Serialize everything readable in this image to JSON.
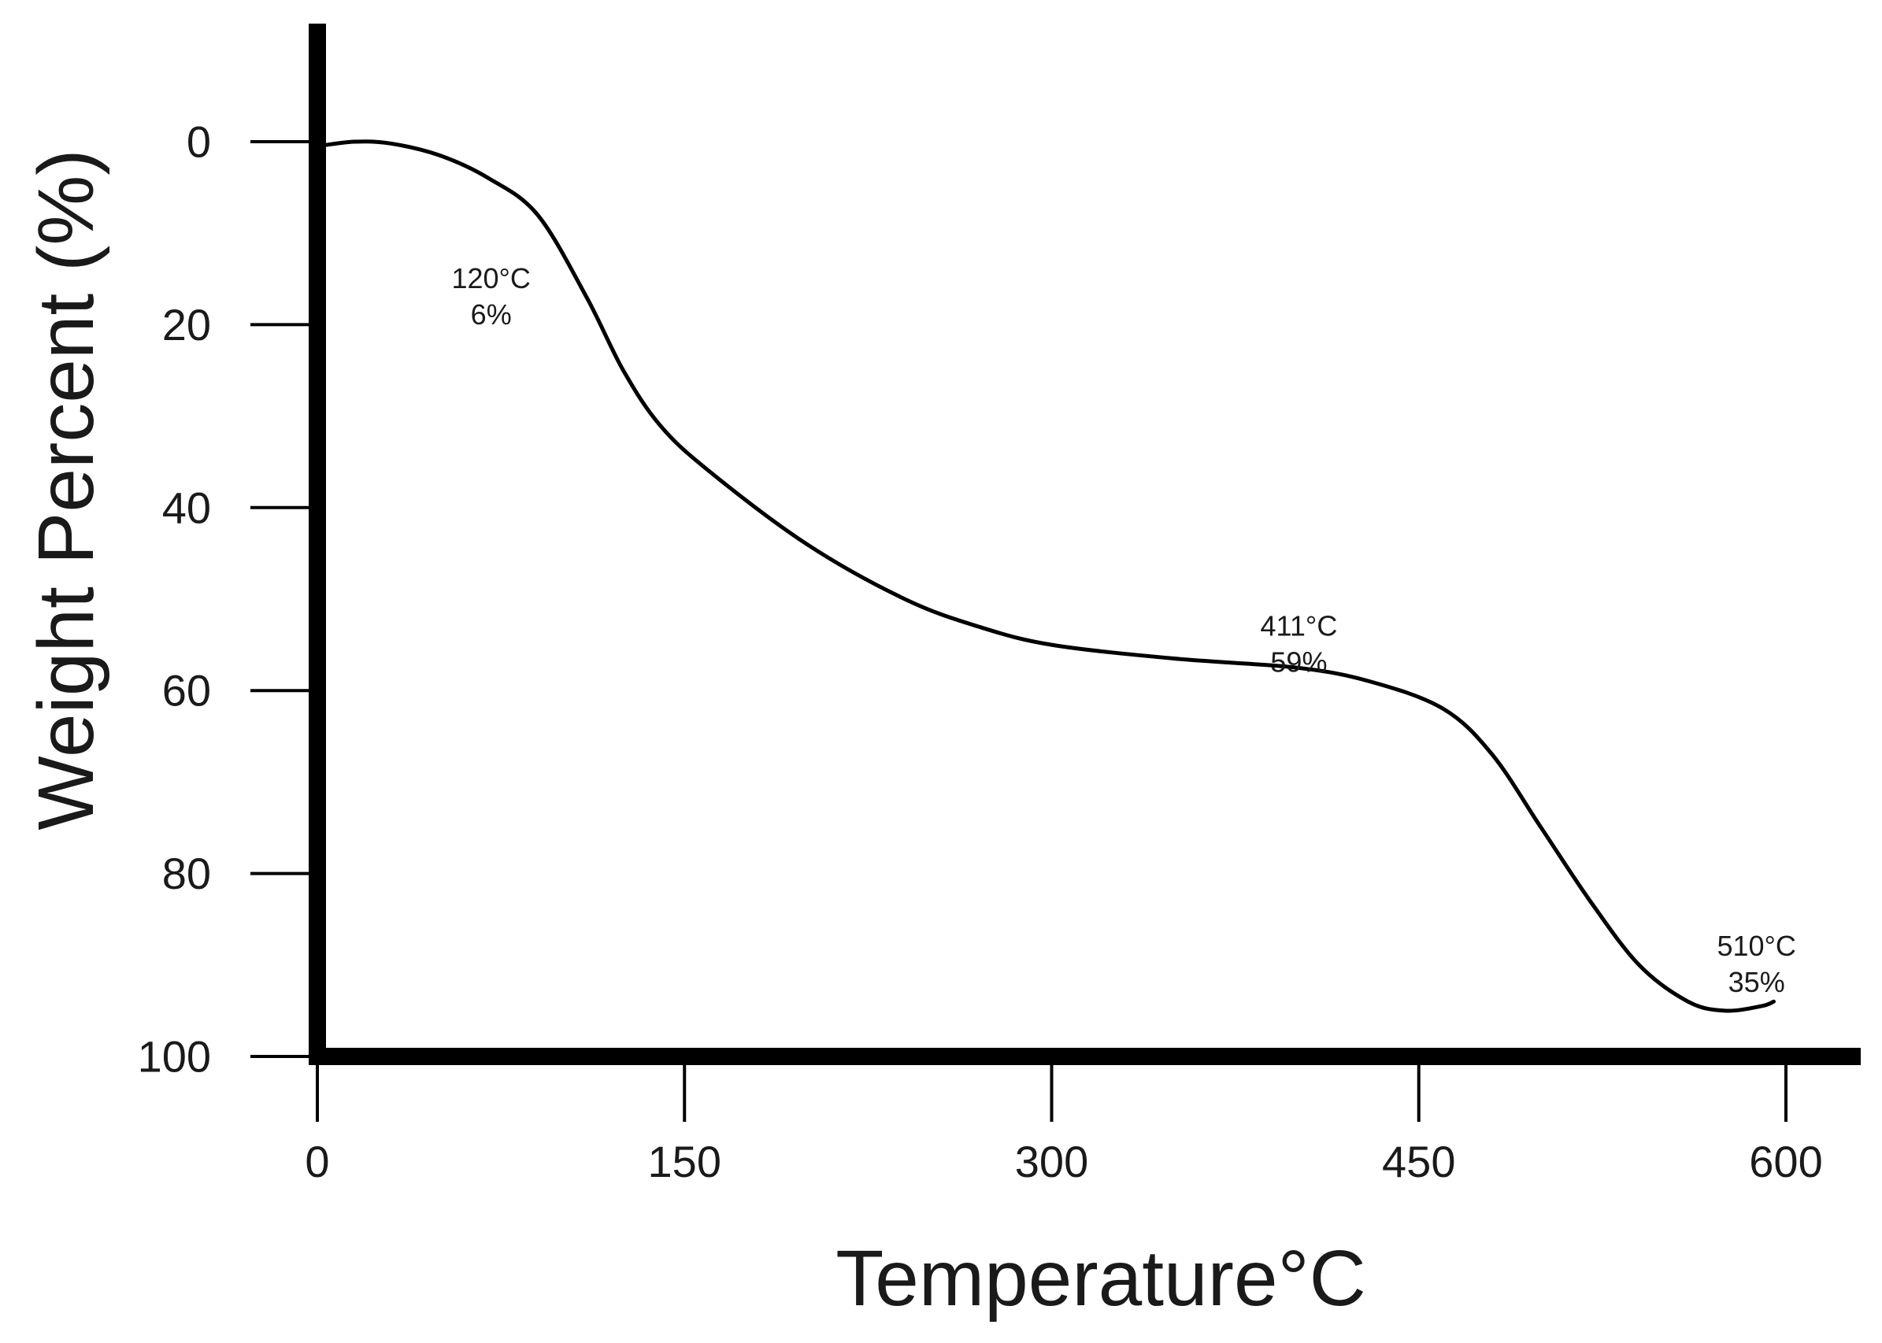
{
  "chart_data": {
    "type": "line",
    "title": "",
    "xlabel": "Temperature°C",
    "ylabel": "Weight Percent (%)",
    "xlim": [
      0,
      600
    ],
    "ylim": [
      0,
      100
    ],
    "y_inverted": true,
    "grid": false,
    "x_ticks": [
      0,
      150,
      300,
      450,
      600
    ],
    "y_ticks": [
      0,
      20,
      40,
      60,
      80,
      100
    ],
    "x_tick_labels": [
      "0",
      "150",
      "300",
      "450",
      "600"
    ],
    "y_tick_labels": [
      "0",
      "20",
      "40",
      "60",
      "80",
      "100"
    ],
    "series": [
      {
        "x": [
          0,
          15,
          30,
          50,
          70,
          90,
          110,
          125,
          140,
          160,
          200,
          240,
          270,
          300,
          350,
          400,
          430,
          460,
          480,
          500,
          520,
          540,
          560,
          575,
          590,
          595
        ],
        "y": [
          0.5,
          0,
          0.2,
          1.5,
          4,
          8,
          17,
          25,
          31,
          36,
          44,
          50,
          53,
          55,
          56.5,
          57.5,
          59,
          62,
          67,
          75,
          83,
          90,
          94,
          95,
          94.5,
          94
        ]
      }
    ],
    "annotations": [
      {
        "x": 71,
        "y": 16,
        "lines": [
          "120°C",
          "6%"
        ]
      },
      {
        "x": 401,
        "y": 54,
        "lines": [
          "411°C",
          "59%"
        ]
      },
      {
        "x": 588,
        "y": 89,
        "lines": [
          "510°C",
          "35%"
        ]
      }
    ]
  }
}
